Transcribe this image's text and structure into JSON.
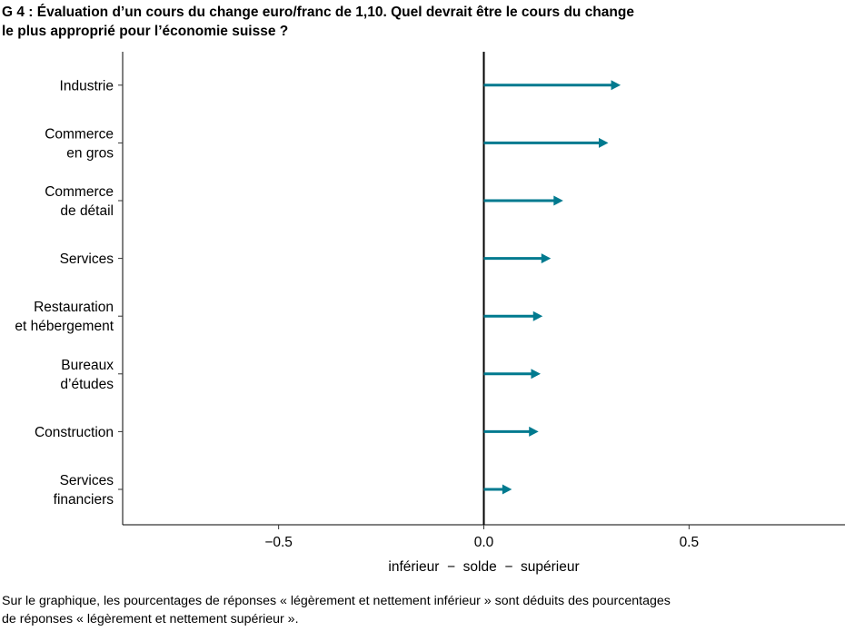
{
  "title_lines": [
    "G 4 : Évaluation d’un cours du change euro/franc de 1,10. Quel devrait être le cours du change",
    "le plus approprié pour l’économie suisse ?"
  ],
  "chart_data": {
    "type": "bar",
    "orientation": "horizontal",
    "mark": "arrow",
    "title": "G 4 : Évaluation d’un cours du change euro/franc de 1,10. Quel devrait être le cours du change le plus approprié pour l’économie suisse ?",
    "categories": [
      [
        "Industrie"
      ],
      [
        "Commerce",
        "en gros"
      ],
      [
        "Commerce",
        "de détail"
      ],
      [
        "Services"
      ],
      [
        "Restauration",
        "et hébergement"
      ],
      [
        "Bureaux",
        "d’études"
      ],
      [
        "Construction"
      ],
      [
        "Services",
        "financiers"
      ]
    ],
    "values": [
      0.33,
      0.3,
      0.19,
      0.16,
      0.14,
      0.135,
      0.13,
      0.065
    ],
    "xlim": [
      -0.88,
      0.88
    ],
    "xticks": [
      -0.5,
      0.0,
      0.5
    ],
    "xtick_labels": [
      "−0.5",
      "0.0",
      "0.5"
    ],
    "xlabel": "inférieur  −  solde  −  supérieur",
    "color": "#007a8f",
    "grid": false,
    "zero_line": true
  },
  "note_lines": [
    "Sur le graphique, les pourcentages de réponses « légèrement et nettement inférieur » sont déduits des pourcentages",
    "de réponses « légèrement et nettement supérieur »."
  ]
}
